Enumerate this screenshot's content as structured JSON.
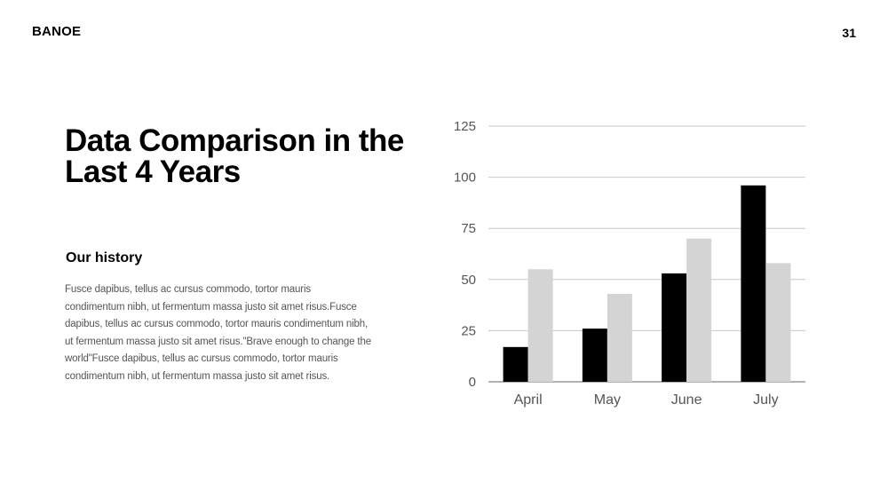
{
  "header": {
    "brand": "BANOE",
    "page_number": "31"
  },
  "content": {
    "title": "Data Comparison in the Last 4 Years",
    "subtitle": "Our history",
    "body": "Fusce dapibus, tellus ac cursus commodo, tortor mauris condimentum nibh, ut fermentum massa justo sit amet risus.Fusce dapibus, tellus ac cursus commodo, tortor mauris condimentum nibh, ut fermentum massa justo sit amet risus.\"Brave enough to change the world\"Fusce dapibus, tellus ac cursus commodo, tortor mauris condimentum nibh, ut fermentum massa justo sit amet risus."
  },
  "chart_data": {
    "type": "bar",
    "categories": [
      "April",
      "May",
      "June",
      "July"
    ],
    "series": [
      {
        "values": [
          17,
          26,
          53,
          96
        ],
        "color": "#000000"
      },
      {
        "values": [
          55,
          43,
          70,
          58
        ],
        "color": "#d4d4d4"
      }
    ],
    "ylim": [
      0,
      125
    ],
    "yticks": [
      0,
      25,
      50,
      75,
      100,
      125
    ],
    "grid": true,
    "legend": "none"
  }
}
